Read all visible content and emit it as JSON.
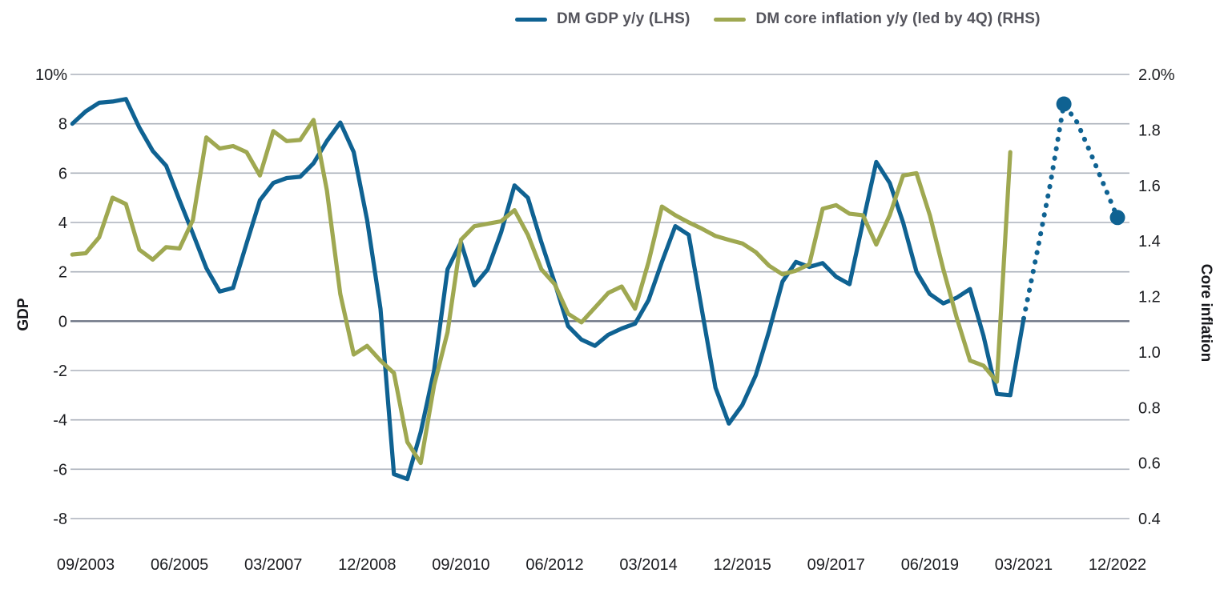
{
  "legend": {
    "items": [
      {
        "label": "DM GDP y/y (LHS)",
        "color_key": "gdp"
      },
      {
        "label": "DM core inflation y/y (led by 4Q) (RHS)",
        "color_key": "inflation"
      }
    ]
  },
  "colors": {
    "gdp": "#0f6292",
    "inflation": "#9fa851",
    "grid": "#abb1bb",
    "zero_line": "#6e7585",
    "tick_text": "#1b1c20",
    "legend_text": "#54545c",
    "background": "#ffffff"
  },
  "chart_data": {
    "type": "line",
    "frequency": "quarterly",
    "legend_position": "top",
    "grid": "horizontal",
    "left_axis": {
      "title": "GDP",
      "tick_labels": [
        "10%",
        "8",
        "6",
        "4",
        "2",
        "0",
        "-2",
        "-4",
        "-6",
        "-8"
      ],
      "range": [
        10,
        -8
      ]
    },
    "right_axis": {
      "title": "Core inflation",
      "tick_labels": [
        "2.0%",
        "1.8",
        "1.6",
        "1.4",
        "1.2",
        "1.0",
        "0.8",
        "0.6",
        "0.4"
      ],
      "range": [
        2.0,
        0.4
      ]
    },
    "x_axis": {
      "tick_labels": [
        "09/2003",
        "06/2005",
        "03/2007",
        "12/2008",
        "09/2010",
        "06/2012",
        "03/2014",
        "12/2015",
        "09/2017",
        "06/2019",
        "03/2021",
        "12/2022"
      ],
      "tick_period_indices": [
        1,
        8,
        15,
        22,
        29,
        36,
        43,
        50,
        57,
        64,
        71,
        78
      ]
    },
    "periods": [
      "06/2003",
      "09/2003",
      "12/2003",
      "03/2004",
      "06/2004",
      "09/2004",
      "12/2004",
      "03/2005",
      "06/2005",
      "09/2005",
      "12/2005",
      "03/2006",
      "06/2006",
      "09/2006",
      "12/2006",
      "03/2007",
      "06/2007",
      "09/2007",
      "12/2007",
      "03/2008",
      "06/2008",
      "09/2008",
      "12/2008",
      "03/2009",
      "06/2009",
      "09/2009",
      "12/2009",
      "03/2010",
      "06/2010",
      "09/2010",
      "12/2010",
      "03/2011",
      "06/2011",
      "09/2011",
      "12/2011",
      "03/2012",
      "06/2012",
      "09/2012",
      "12/2012",
      "03/2013",
      "06/2013",
      "09/2013",
      "12/2013",
      "03/2014",
      "06/2014",
      "09/2014",
      "12/2014",
      "03/2015",
      "06/2015",
      "09/2015",
      "12/2015",
      "03/2016",
      "06/2016",
      "09/2016",
      "12/2016",
      "03/2017",
      "06/2017",
      "09/2017",
      "12/2017",
      "03/2018",
      "06/2018",
      "09/2018",
      "12/2018",
      "03/2019",
      "06/2019",
      "09/2019",
      "12/2019",
      "03/2020",
      "06/2020",
      "09/2020",
      "12/2020",
      "03/2021",
      "06/2021",
      "09/2021",
      "12/2021",
      "03/2022",
      "06/2022",
      "09/2022",
      "12/2022"
    ],
    "series": [
      {
        "name": "DM GDP y/y (LHS)",
        "axis": "left",
        "style": "solid",
        "color_key": "gdp",
        "start_index": 0,
        "values": [
          8.0,
          8.5,
          8.85,
          8.9,
          9.0,
          7.85,
          6.9,
          6.3,
          4.9,
          3.55,
          2.15,
          1.2,
          1.35,
          3.15,
          4.9,
          5.6,
          5.8,
          5.85,
          6.4,
          7.3,
          8.05,
          6.85,
          4.1,
          0.5,
          -6.2,
          -6.4,
          -4.5,
          -2.0,
          2.1,
          3.2,
          1.45,
          2.1,
          3.6,
          5.5,
          5.0,
          3.2,
          1.55,
          -0.2,
          -0.75,
          -1.0,
          -0.55,
          -0.3,
          -0.1,
          0.85,
          2.4,
          3.85,
          3.5,
          0.4,
          -2.7,
          -4.15,
          -3.4,
          -2.2,
          -0.4,
          1.6,
          2.4,
          2.2,
          2.35,
          1.8,
          1.5,
          4.0,
          6.45,
          5.6,
          4.0,
          2.0,
          1.1,
          0.72,
          0.95,
          1.3,
          -0.6,
          -2.95,
          -3.0,
          0.1
        ]
      },
      {
        "name": "DM GDP y/y (LHS) forecast",
        "axis": "left",
        "style": "dotted",
        "color_key": "gdp",
        "start_index": 71,
        "values": [
          0.1,
          2.8,
          5.6,
          8.8,
          8.05,
          6.8,
          5.5,
          4.2
        ],
        "marker_local_indices": [
          3,
          7
        ],
        "marker_values": [
          8.8,
          4.2
        ]
      },
      {
        "name": "DM core inflation y/y (led by 4Q) (RHS)",
        "axis": "right",
        "style": "solid",
        "color_key": "inflation",
        "start_index": 0,
        "values": [
          1.351,
          1.356,
          1.413,
          1.556,
          1.533,
          1.369,
          1.333,
          1.378,
          1.373,
          1.476,
          1.773,
          1.733,
          1.742,
          1.72,
          1.636,
          1.796,
          1.76,
          1.764,
          1.836,
          1.582,
          1.209,
          0.991,
          1.022,
          0.969,
          0.924,
          0.676,
          0.6,
          0.88,
          1.071,
          1.404,
          1.453,
          1.462,
          1.471,
          1.511,
          1.422,
          1.298,
          1.244,
          1.138,
          1.107,
          1.16,
          1.213,
          1.236,
          1.156,
          1.324,
          1.524,
          1.493,
          1.467,
          1.444,
          1.418,
          1.404,
          1.391,
          1.36,
          1.311,
          1.28,
          1.293,
          1.316,
          1.516,
          1.529,
          1.498,
          1.493,
          1.387,
          1.493,
          1.636,
          1.644,
          1.493,
          1.298,
          1.124,
          0.969,
          0.951,
          0.893,
          1.72
        ]
      }
    ]
  }
}
